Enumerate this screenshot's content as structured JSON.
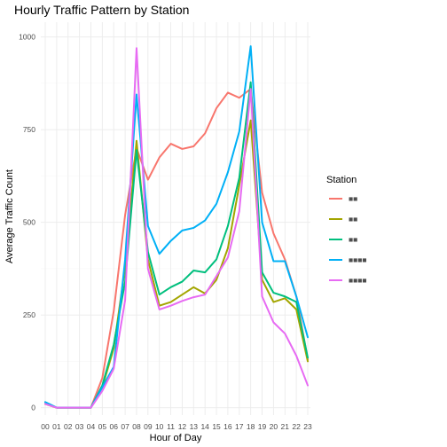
{
  "chart_data": {
    "type": "line",
    "title": "Hourly Traffic Pattern by Station",
    "xlabel": "Hour of Day",
    "ylabel": "Average Traffic Count",
    "categories": [
      "00",
      "01",
      "02",
      "03",
      "04",
      "05",
      "06",
      "07",
      "08",
      "09",
      "10",
      "11",
      "12",
      "13",
      "14",
      "15",
      "16",
      "17",
      "18",
      "19",
      "20",
      "21",
      "22",
      "23"
    ],
    "ylim": [
      -20,
      1040
    ],
    "yticks": [
      0,
      250,
      500,
      750,
      1000
    ],
    "grid": true,
    "legend": {
      "title": "Station",
      "position": "right"
    },
    "series": [
      {
        "name": "■■",
        "color": "#F8766D",
        "values": [
          10,
          0,
          0,
          0,
          0,
          80,
          260,
          520,
          700,
          615,
          675,
          712,
          698,
          705,
          740,
          808,
          850,
          836,
          860,
          580,
          470,
          400,
          300,
          130
        ]
      },
      {
        "name": "■■",
        "color": "#A3A500",
        "values": [
          10,
          0,
          0,
          0,
          0,
          55,
          160,
          380,
          720,
          400,
          275,
          285,
          305,
          325,
          308,
          345,
          430,
          600,
          775,
          345,
          285,
          295,
          265,
          125
        ]
      },
      {
        "name": "■■",
        "color": "#00BF7D",
        "values": [
          15,
          0,
          0,
          0,
          0,
          60,
          170,
          340,
          695,
          420,
          305,
          325,
          340,
          370,
          365,
          400,
          490,
          620,
          878,
          365,
          310,
          300,
          285,
          135
        ]
      },
      {
        "name": "■■■■",
        "color": "#00B0F6",
        "values": [
          15,
          0,
          0,
          0,
          0,
          55,
          110,
          400,
          845,
          490,
          415,
          450,
          478,
          485,
          505,
          550,
          635,
          745,
          975,
          500,
          395,
          395,
          300,
          190
        ]
      },
      {
        "name": "■■■■",
        "color": "#E76BF3",
        "values": [
          10,
          0,
          0,
          0,
          0,
          45,
          105,
          290,
          970,
          375,
          265,
          275,
          288,
          298,
          305,
          355,
          405,
          530,
          860,
          300,
          230,
          200,
          140,
          60
        ]
      }
    ]
  }
}
